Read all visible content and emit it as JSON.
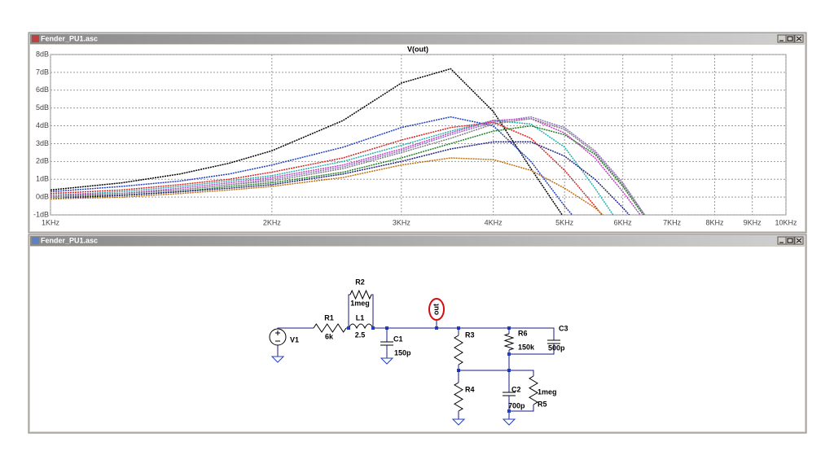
{
  "windows": {
    "plot_title": "Fender_PU1.asc",
    "schematic_title": "Fender_PU1.asc"
  },
  "chart_data": {
    "type": "line",
    "title": "V(out)",
    "x": [
      1000,
      1250,
      1500,
      1750,
      2000,
      2500,
      3000,
      3500,
      4000,
      4500,
      5000,
      5500,
      6000,
      6500
    ],
    "series": [
      {
        "color": "#000000",
        "values": [
          0.4,
          0.8,
          1.3,
          1.9,
          2.6,
          4.3,
          6.4,
          7.2,
          4.8,
          1.6,
          -1.2,
          null,
          null,
          null
        ]
      },
      {
        "color": "#1f3fbf",
        "values": [
          0.3,
          0.6,
          0.9,
          1.3,
          1.8,
          2.8,
          3.9,
          4.5,
          4.0,
          2.0,
          -0.5,
          -2.5,
          null,
          null
        ]
      },
      {
        "color": "#e02020",
        "values": [
          0.2,
          0.4,
          0.7,
          1.0,
          1.4,
          2.2,
          3.2,
          3.9,
          4.2,
          3.3,
          1.5,
          -0.5,
          -2.5,
          null
        ]
      },
      {
        "color": "#20b0b0",
        "values": [
          0.1,
          0.3,
          0.6,
          0.9,
          1.2,
          2.0,
          2.9,
          3.7,
          4.3,
          4.1,
          2.8,
          0.5,
          -1.8,
          null
        ]
      },
      {
        "color": "#9070c0",
        "values": [
          0.0,
          0.2,
          0.4,
          0.7,
          1.0,
          1.7,
          2.6,
          3.5,
          4.2,
          4.5,
          3.9,
          2.6,
          0.8,
          -1.3
        ]
      },
      {
        "color": "#208020",
        "values": [
          0.0,
          0.1,
          0.3,
          0.6,
          0.8,
          1.4,
          2.2,
          3.0,
          3.7,
          4.0,
          3.5,
          2.4,
          0.6,
          -1.4
        ]
      },
      {
        "color": "#c040c0",
        "values": [
          0.1,
          0.2,
          0.5,
          0.8,
          1.1,
          1.8,
          2.7,
          3.6,
          4.3,
          4.4,
          3.6,
          2.2,
          0.3,
          -1.6
        ]
      },
      {
        "color": "#808080",
        "values": [
          0.0,
          0.2,
          0.4,
          0.7,
          0.9,
          1.6,
          2.5,
          3.3,
          4.1,
          4.4,
          3.8,
          2.5,
          0.7,
          -1.3
        ]
      },
      {
        "color": "#202080",
        "values": [
          -0.1,
          0.1,
          0.3,
          0.5,
          0.7,
          1.3,
          2.0,
          2.7,
          3.1,
          3.1,
          2.3,
          1.0,
          -0.6,
          -2.2
        ]
      },
      {
        "color": "#c07010",
        "values": [
          -0.1,
          0.0,
          0.2,
          0.4,
          0.6,
          1.1,
          1.8,
          2.2,
          2.1,
          1.5,
          0.5,
          -0.6,
          -2.0,
          null
        ]
      }
    ],
    "xlog": true,
    "xlim": [
      1000,
      10000
    ],
    "xticks": [
      {
        "value": 1000,
        "label": "1KHz"
      },
      {
        "value": 2000,
        "label": "2KHz"
      },
      {
        "value": 3000,
        "label": "3KHz"
      },
      {
        "value": 4000,
        "label": "4KHz"
      },
      {
        "value": 5000,
        "label": "5KHz"
      },
      {
        "value": 6000,
        "label": "6KHz"
      },
      {
        "value": 7000,
        "label": "7KHz"
      },
      {
        "value": 8000,
        "label": "8KHz"
      },
      {
        "value": 9000,
        "label": "9KHz"
      },
      {
        "value": 10000,
        "label": "10KHz"
      }
    ],
    "ylim": [
      -1,
      8
    ],
    "yticks": [
      {
        "value": -1,
        "label": "-1dB"
      },
      {
        "value": 0,
        "label": "0dB"
      },
      {
        "value": 1,
        "label": "1dB"
      },
      {
        "value": 2,
        "label": "2dB"
      },
      {
        "value": 3,
        "label": "3dB"
      },
      {
        "value": 4,
        "label": "4dB"
      },
      {
        "value": 5,
        "label": "5dB"
      },
      {
        "value": 6,
        "label": "6dB"
      },
      {
        "value": 7,
        "label": "7dB"
      },
      {
        "value": 8,
        "label": "8dB"
      }
    ],
    "grid": true
  },
  "schematic": {
    "net_label": "out",
    "components": [
      {
        "name": "V1"
      },
      {
        "name": "R1",
        "value": "6k"
      },
      {
        "name": "R2",
        "value": "1meg"
      },
      {
        "name": "L1",
        "value": "2.5"
      },
      {
        "name": "C1",
        "value": "150p"
      },
      {
        "name": "R3"
      },
      {
        "name": "R4"
      },
      {
        "name": "R6",
        "value": "150k"
      },
      {
        "name": "C3",
        "value": "500p"
      },
      {
        "name": "C2",
        "value": "700p"
      },
      {
        "name": "R5",
        "value": "1meg"
      }
    ]
  }
}
